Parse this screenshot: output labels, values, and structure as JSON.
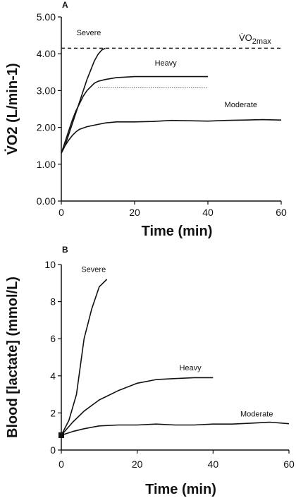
{
  "chart_data": [
    {
      "panel_label": "A",
      "type": "line",
      "xlabel": "Time (min)",
      "ylabel": "V̇O2 (L/min-1)",
      "xlim": [
        0,
        60
      ],
      "ylim": [
        0,
        5
      ],
      "xticks": [
        "0",
        "20",
        "40",
        "60"
      ],
      "yticks": [
        "0.00",
        "1.00",
        "2.00",
        "3.00",
        "4.00",
        "5.00"
      ],
      "series": [
        {
          "name": "Severe",
          "style": "solid",
          "points": [
            [
              0,
              1.3
            ],
            [
              1,
              1.5
            ],
            [
              2,
              1.8
            ],
            [
              3,
              2.1
            ],
            [
              4,
              2.4
            ],
            [
              5,
              2.7
            ],
            [
              6,
              3.0
            ],
            [
              7,
              3.3
            ],
            [
              8,
              3.55
            ],
            [
              9,
              3.8
            ],
            [
              10,
              3.98
            ],
            [
              11,
              4.1
            ],
            [
              12,
              4.15
            ]
          ]
        },
        {
          "name": "Heavy",
          "style": "solid",
          "points": [
            [
              0,
              1.3
            ],
            [
              1,
              1.6
            ],
            [
              2,
              1.9
            ],
            [
              3,
              2.2
            ],
            [
              4,
              2.45
            ],
            [
              5,
              2.65
            ],
            [
              6,
              2.85
            ],
            [
              7,
              3.0
            ],
            [
              8,
              3.1
            ],
            [
              9,
              3.2
            ],
            [
              10,
              3.25
            ],
            [
              12,
              3.3
            ],
            [
              15,
              3.35
            ],
            [
              20,
              3.38
            ],
            [
              30,
              3.38
            ],
            [
              40,
              3.38
            ]
          ]
        },
        {
          "name": "Moderate",
          "style": "solid",
          "points": [
            [
              0,
              1.3
            ],
            [
              1,
              1.5
            ],
            [
              2,
              1.65
            ],
            [
              3,
              1.78
            ],
            [
              4,
              1.88
            ],
            [
              5,
              1.95
            ],
            [
              7,
              2.02
            ],
            [
              10,
              2.08
            ],
            [
              12,
              2.12
            ],
            [
              15,
              2.15
            ],
            [
              20,
              2.15
            ],
            [
              25,
              2.16
            ],
            [
              30,
              2.19
            ],
            [
              35,
              2.18
            ],
            [
              40,
              2.17
            ],
            [
              45,
              2.19
            ],
            [
              50,
              2.2
            ],
            [
              55,
              2.21
            ],
            [
              60,
              2.2
            ]
          ]
        }
      ],
      "reference_lines": [
        {
          "name": "V̇O2max",
          "style": "dashed",
          "y": 4.15,
          "x_range": [
            0,
            60
          ]
        },
        {
          "style": "dotted",
          "y": 3.08,
          "x_range": [
            10,
            40
          ]
        }
      ],
      "annotations": [
        {
          "text": "Severe",
          "x": 7.5,
          "y": 4.5
        },
        {
          "text": "Heavy",
          "x": 28.5,
          "y": 3.68
        },
        {
          "text": "Moderate",
          "x": 49,
          "y": 2.55
        }
      ],
      "vo2max_label": {
        "main": "V̇O",
        "sub": "2max"
      }
    },
    {
      "panel_label": "B",
      "type": "line",
      "xlabel": "Time (min)",
      "ylabel": "Blood [lactate] (mmol/L)",
      "xlim": [
        0,
        60
      ],
      "ylim": [
        0,
        10
      ],
      "xticks": [
        "0",
        "20",
        "40",
        "60"
      ],
      "yticks": [
        "0",
        "2",
        "4",
        "6",
        "8",
        "10"
      ],
      "series": [
        {
          "name": "Severe",
          "style": "solid",
          "points": [
            [
              0,
              0.8
            ],
            [
              2,
              1.6
            ],
            [
              4,
              3.0
            ],
            [
              6,
              6.0
            ],
            [
              8,
              7.6
            ],
            [
              10,
              8.8
            ],
            [
              12,
              9.2
            ]
          ]
        },
        {
          "name": "Heavy",
          "style": "solid",
          "points": [
            [
              0,
              0.8
            ],
            [
              3,
              1.5
            ],
            [
              6,
              2.1
            ],
            [
              10,
              2.7
            ],
            [
              15,
              3.2
            ],
            [
              20,
              3.6
            ],
            [
              25,
              3.8
            ],
            [
              30,
              3.85
            ],
            [
              35,
              3.9
            ],
            [
              40,
              3.9
            ]
          ]
        },
        {
          "name": "Moderate",
          "style": "solid",
          "points": [
            [
              0,
              0.8
            ],
            [
              3,
              1.0
            ],
            [
              6,
              1.15
            ],
            [
              10,
              1.3
            ],
            [
              15,
              1.35
            ],
            [
              20,
              1.35
            ],
            [
              25,
              1.4
            ],
            [
              30,
              1.35
            ],
            [
              35,
              1.35
            ],
            [
              40,
              1.4
            ],
            [
              45,
              1.4
            ],
            [
              50,
              1.45
            ],
            [
              55,
              1.5
            ],
            [
              60,
              1.42
            ]
          ]
        }
      ],
      "markers": [
        {
          "x": 0,
          "y": 0.8,
          "shape": "square"
        }
      ],
      "annotations": [
        {
          "text": "Severe",
          "x": 8.5,
          "y": 9.6
        },
        {
          "text": "Heavy",
          "x": 34,
          "y": 4.3
        },
        {
          "text": "Moderate",
          "x": 51.5,
          "y": 1.8
        }
      ]
    }
  ]
}
